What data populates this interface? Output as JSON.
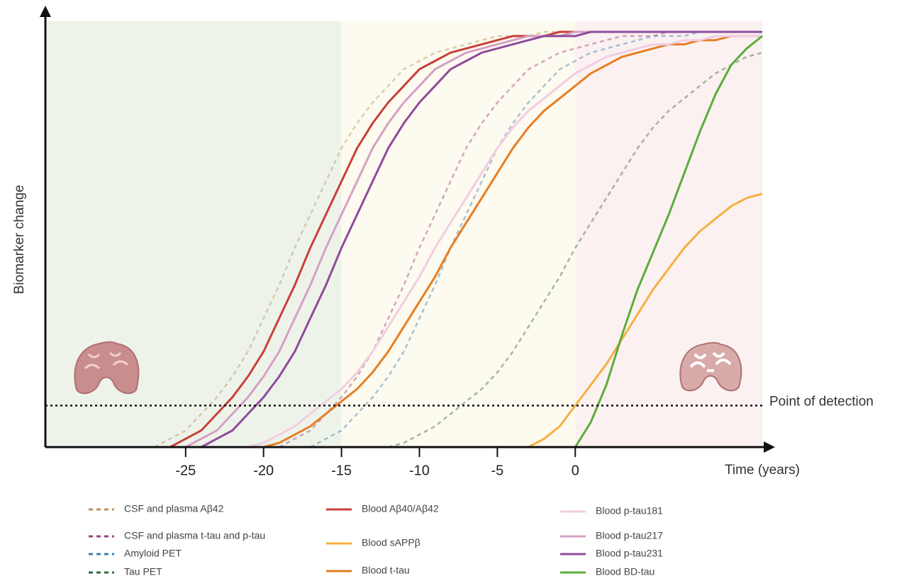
{
  "chart_data": {
    "type": "line",
    "y_label": "Biomarker change",
    "x_label": "Time (years)",
    "annotation": {
      "text": "Point of detection",
      "y": 0.1
    },
    "xlim": [
      -34,
      12
    ],
    "ylim": [
      0,
      1
    ],
    "xticks": [
      -25,
      -20,
      -15,
      -10,
      -5,
      0
    ],
    "x": [
      -27,
      -26,
      -25,
      -24,
      -23,
      -22,
      -21,
      -20,
      -19,
      -18,
      -17,
      -16,
      -15,
      -14,
      -13,
      -12,
      -11,
      -10,
      -9,
      -8,
      -7,
      -6,
      -5,
      -4,
      -3,
      -2,
      -1,
      0,
      1,
      2,
      3,
      4,
      5,
      6,
      7,
      8,
      9,
      10,
      11,
      12
    ],
    "series": [
      {
        "name": "CSF and plasma Aβ42",
        "color": "#b8925a",
        "dash": true,
        "values": [
          0,
          0.02,
          0.04,
          0.08,
          0.12,
          0.17,
          0.23,
          0.31,
          0.39,
          0.48,
          0.56,
          0.64,
          0.72,
          0.78,
          0.83,
          0.87,
          0.91,
          0.93,
          0.95,
          0.96,
          0.97,
          0.98,
          0.99,
          0.99,
          0.99,
          1,
          1,
          1,
          1,
          1,
          1,
          1,
          1,
          1,
          1,
          1,
          1,
          1,
          1,
          1
        ]
      },
      {
        "name": "CSF and plasma t-tau and p-tau",
        "color": "#a0407f",
        "dash": true,
        "values": [
          null,
          null,
          null,
          null,
          null,
          null,
          null,
          null,
          0,
          0.02,
          0.04,
          0.08,
          0.12,
          0.17,
          0.23,
          0.31,
          0.39,
          0.48,
          0.56,
          0.64,
          0.72,
          0.78,
          0.83,
          0.87,
          0.91,
          0.93,
          0.95,
          0.96,
          0.97,
          0.98,
          0.99,
          0.99,
          0.99,
          1,
          1,
          1,
          1,
          1,
          1,
          1
        ]
      },
      {
        "name": "Amyloid PET",
        "color": "#3b7fb0",
        "dash": true,
        "values": [
          null,
          null,
          null,
          null,
          null,
          null,
          null,
          null,
          null,
          null,
          0,
          0.02,
          0.04,
          0.08,
          0.12,
          0.17,
          0.23,
          0.31,
          0.39,
          0.48,
          0.56,
          0.64,
          0.72,
          0.78,
          0.83,
          0.87,
          0.91,
          0.93,
          0.95,
          0.96,
          0.97,
          0.98,
          0.99,
          0.99,
          0.99,
          1,
          1,
          1,
          1,
          1
        ]
      },
      {
        "name": "Tau PET",
        "color": "#2e6b3a",
        "dash": true,
        "values": [
          null,
          null,
          null,
          null,
          null,
          null,
          null,
          null,
          null,
          null,
          null,
          null,
          null,
          null,
          null,
          0,
          0.01,
          0.03,
          0.05,
          0.08,
          0.11,
          0.14,
          0.18,
          0.23,
          0.29,
          0.35,
          0.41,
          0.48,
          0.54,
          0.6,
          0.66,
          0.72,
          0.77,
          0.81,
          0.84,
          0.87,
          0.9,
          0.92,
          0.94,
          0.95
        ]
      },
      {
        "name": "Blood Aβ40/Aβ42",
        "color": "#c8403a",
        "dash": false,
        "values": [
          null,
          0,
          0.02,
          0.04,
          0.08,
          0.12,
          0.17,
          0.23,
          0.31,
          0.39,
          0.48,
          0.56,
          0.64,
          0.72,
          0.78,
          0.83,
          0.87,
          0.91,
          0.93,
          0.95,
          0.96,
          0.97,
          0.98,
          0.99,
          0.99,
          0.99,
          1,
          1,
          1,
          1,
          1,
          1,
          1,
          1,
          1,
          1,
          1,
          1,
          1,
          1
        ]
      },
      {
        "name": "Blood sAPPβ",
        "color": "#f5b041",
        "dash": false,
        "values": [
          null,
          null,
          null,
          null,
          null,
          null,
          null,
          null,
          null,
          null,
          null,
          null,
          null,
          null,
          null,
          null,
          null,
          null,
          null,
          null,
          null,
          null,
          null,
          null,
          0,
          0.02,
          0.05,
          0.1,
          0.15,
          0.2,
          0.26,
          0.32,
          0.38,
          0.43,
          0.48,
          0.52,
          0.55,
          0.58,
          0.6,
          0.61
        ]
      },
      {
        "name": "Blood t-tau",
        "color": "#e67e22",
        "dash": false,
        "values": [
          null,
          null,
          null,
          null,
          null,
          null,
          null,
          0,
          0.01,
          0.03,
          0.05,
          0.08,
          0.11,
          0.14,
          0.18,
          0.23,
          0.29,
          0.35,
          0.41,
          0.48,
          0.54,
          0.6,
          0.66,
          0.72,
          0.77,
          0.81,
          0.84,
          0.87,
          0.9,
          0.92,
          0.94,
          0.95,
          0.96,
          0.97,
          0.97,
          0.98,
          0.98,
          0.99,
          0.99,
          0.99
        ]
      },
      {
        "name": "Blood p-tau181",
        "color": "#f2cde3",
        "dash": false,
        "values": [
          null,
          null,
          null,
          null,
          null,
          null,
          0,
          0.01,
          0.03,
          0.05,
          0.08,
          0.11,
          0.14,
          0.18,
          0.23,
          0.29,
          0.35,
          0.41,
          0.48,
          0.54,
          0.6,
          0.66,
          0.72,
          0.77,
          0.81,
          0.84,
          0.87,
          0.9,
          0.92,
          0.94,
          0.95,
          0.96,
          0.97,
          0.97,
          0.98,
          0.98,
          0.99,
          0.99,
          0.99,
          0.99
        ]
      },
      {
        "name": "Blood p-tau217",
        "color": "#d4a0c4",
        "dash": false,
        "values": [
          null,
          null,
          0,
          0.02,
          0.04,
          0.08,
          0.12,
          0.17,
          0.23,
          0.31,
          0.39,
          0.48,
          0.56,
          0.64,
          0.72,
          0.78,
          0.83,
          0.87,
          0.91,
          0.93,
          0.95,
          0.96,
          0.97,
          0.98,
          0.99,
          0.99,
          0.99,
          1,
          1,
          1,
          1,
          1,
          1,
          1,
          1,
          1,
          1,
          1,
          1,
          1
        ]
      },
      {
        "name": "Blood p-tau231",
        "color": "#8e4b9b",
        "dash": false,
        "values": [
          null,
          null,
          null,
          0,
          0.02,
          0.04,
          0.08,
          0.12,
          0.17,
          0.23,
          0.31,
          0.39,
          0.48,
          0.56,
          0.64,
          0.72,
          0.78,
          0.83,
          0.87,
          0.91,
          0.93,
          0.95,
          0.96,
          0.97,
          0.98,
          0.99,
          0.99,
          0.99,
          1,
          1,
          1,
          1,
          1,
          1,
          1,
          1,
          1,
          1,
          1,
          1
        ]
      },
      {
        "name": "Blood BD-tau",
        "color": "#5aad3a",
        "dash": false,
        "values": [
          null,
          null,
          null,
          null,
          null,
          null,
          null,
          null,
          null,
          null,
          null,
          null,
          null,
          null,
          null,
          null,
          null,
          null,
          null,
          null,
          null,
          null,
          null,
          null,
          null,
          null,
          null,
          0,
          0.06,
          0.15,
          0.27,
          0.38,
          0.47,
          0.56,
          0.66,
          0.76,
          0.85,
          0.92,
          0.96,
          0.99
        ]
      }
    ]
  }
}
